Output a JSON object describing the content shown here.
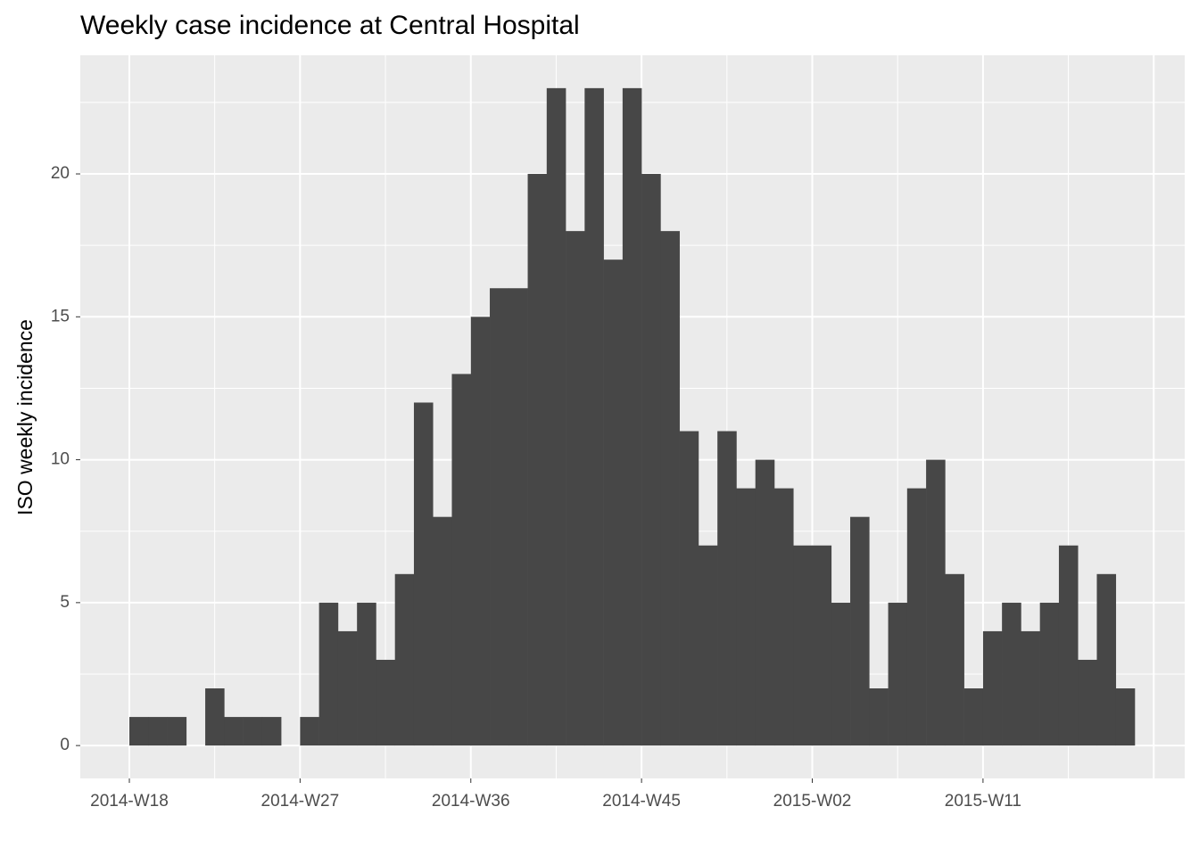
{
  "chart_data": {
    "type": "bar",
    "title": "Weekly case incidence at Central Hospital",
    "y_label": "ISO weekly incidence",
    "categories": [
      "2014-W18",
      null,
      null,
      null,
      null,
      null,
      null,
      null,
      null,
      "2014-W27",
      null,
      null,
      null,
      null,
      null,
      null,
      null,
      null,
      "2014-W36",
      null,
      null,
      null,
      null,
      null,
      null,
      null,
      null,
      "2014-W45",
      null,
      null,
      null,
      null,
      null,
      null,
      null,
      null,
      "2015-W02",
      null,
      null,
      null,
      null,
      null,
      null,
      null,
      null,
      "2015-W11",
      null,
      null,
      null,
      null,
      null,
      null,
      null
    ],
    "values": [
      1,
      1,
      1,
      0,
      2,
      1,
      1,
      1,
      0,
      1,
      5,
      4,
      5,
      3,
      6,
      12,
      8,
      13,
      15,
      16,
      16,
      20,
      23,
      18,
      23,
      17,
      23,
      20,
      18,
      11,
      7,
      11,
      9,
      10,
      9,
      7,
      7,
      5,
      8,
      2,
      5,
      9,
      10,
      6,
      2,
      4,
      5,
      4,
      5,
      7,
      3,
      6,
      2
    ],
    "color": "#474747",
    "ylim": [
      -1.15,
      24.15
    ],
    "yticks": [
      0,
      5,
      10,
      15,
      20
    ],
    "grid": true
  }
}
